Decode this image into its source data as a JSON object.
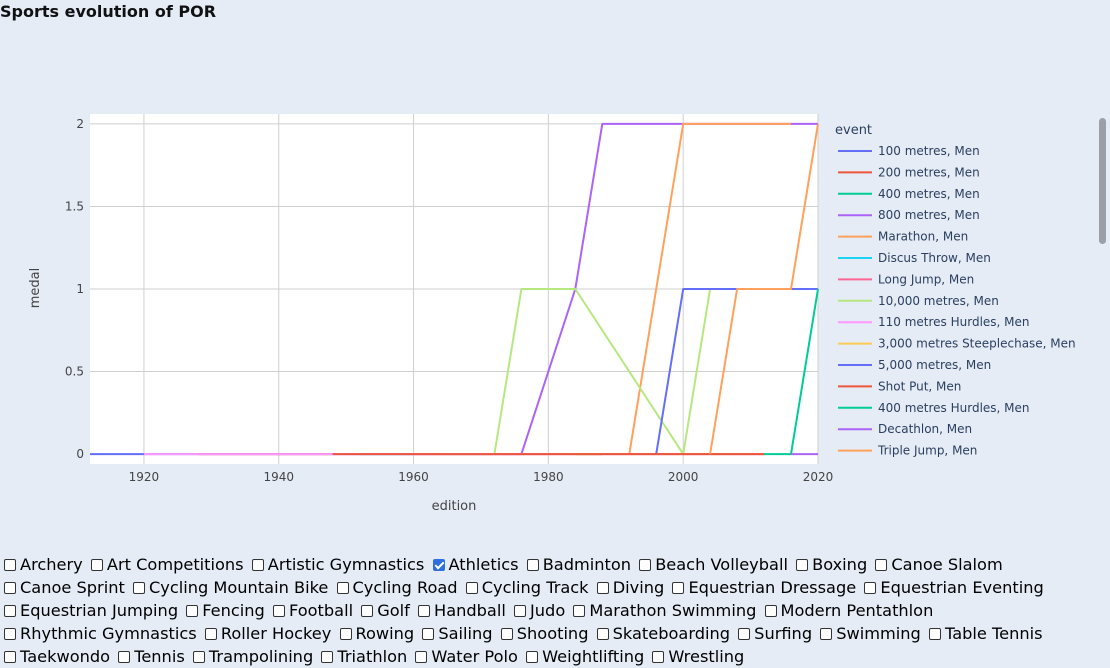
{
  "page": {
    "title": "Sports evolution of POR"
  },
  "chart_data": {
    "type": "line",
    "title": "Sports evolution of POR",
    "xlabel": "edition",
    "ylabel": "medal",
    "xlim": [
      1912,
      2020
    ],
    "ylim": [
      -0.06,
      2.06
    ],
    "x_ticks": [
      1920,
      1940,
      1960,
      1980,
      2000,
      2020
    ],
    "y_ticks": [
      0,
      0.5,
      1,
      1.5,
      2
    ],
    "y_tick_labels": [
      "0",
      "0.5",
      "1",
      "1.5",
      "2"
    ],
    "grid": true,
    "legend_title": "event",
    "legend_position": "right",
    "series": [
      {
        "name": "100 metres, Men",
        "color": "#636efa",
        "x": [
          1912,
          1976
        ],
        "y": [
          0,
          0
        ]
      },
      {
        "name": "200 metres, Men",
        "color": "#ef553b",
        "x": [
          1928,
          1948
        ],
        "y": [
          0,
          0
        ]
      },
      {
        "name": "400 metres, Men",
        "color": "#00cc96",
        "x": [
          1984,
          1988
        ],
        "y": [
          0,
          0
        ]
      },
      {
        "name": "800 metres, Men",
        "color": "#ab63fa",
        "x": [
          1976,
          1984,
          1988,
          2016,
          2020
        ],
        "y": [
          0,
          1,
          2,
          2,
          2
        ]
      },
      {
        "name": "Marathon, Men",
        "color": "#ffa15a",
        "x": [
          1992,
          1996,
          2000,
          2004,
          2008,
          2016
        ],
        "y": [
          0,
          1,
          2,
          2,
          2,
          2
        ]
      },
      {
        "name": "Discus Throw, Men",
        "color": "#19d3f3",
        "x": [
          1952,
          1960
        ],
        "y": [
          0,
          0
        ]
      },
      {
        "name": "Long Jump, Men",
        "color": "#ff6692",
        "x": [
          1960,
          1964,
          2004,
          2012
        ],
        "y": [
          0,
          0,
          0,
          0
        ]
      },
      {
        "name": "10,000 metres, Men",
        "color": "#b6e880",
        "x": [
          1964,
          1972,
          1976,
          1984,
          2000,
          2004
        ],
        "y": [
          0,
          0,
          1,
          1,
          0,
          1
        ]
      },
      {
        "name": "110 metres Hurdles, Men",
        "color": "#ff97ff",
        "x": [
          1920,
          1928,
          1976,
          1980
        ],
        "y": [
          0,
          0,
          0,
          0
        ]
      },
      {
        "name": "3,000 metres Steeplechase, Men",
        "color": "#fecb52",
        "x": [
          1984,
          1988
        ],
        "y": [
          0,
          0
        ]
      },
      {
        "name": "5,000 metres, Men",
        "color": "#636efa",
        "x": [
          1996,
          2000,
          2004,
          2020
        ],
        "y": [
          0,
          1,
          1,
          1
        ]
      },
      {
        "name": "Shot Put, Men",
        "color": "#ef553b",
        "x": [
          1948,
          1952,
          2008,
          2012
        ],
        "y": [
          0,
          0,
          0,
          0
        ]
      },
      {
        "name": "400 metres Hurdles, Men",
        "color": "#00cc96",
        "x": [
          2012,
          2016,
          2020
        ],
        "y": [
          0,
          0,
          1
        ]
      },
      {
        "name": "Decathlon, Men",
        "color": "#ab63fa",
        "x": [
          2016,
          2020
        ],
        "y": [
          0,
          0
        ]
      },
      {
        "name": "Triple Jump, Men",
        "color": "#ffa15a",
        "x": [
          2004,
          2008,
          2016,
          2020
        ],
        "y": [
          0,
          1,
          1,
          2
        ]
      }
    ]
  },
  "sports": [
    {
      "label": "Archery",
      "checked": false
    },
    {
      "label": "Art Competitions",
      "checked": false
    },
    {
      "label": "Artistic Gymnastics",
      "checked": false
    },
    {
      "label": "Athletics",
      "checked": true
    },
    {
      "label": "Badminton",
      "checked": false
    },
    {
      "label": "Beach Volleyball",
      "checked": false
    },
    {
      "label": "Boxing",
      "checked": false
    },
    {
      "label": "Canoe Slalom",
      "checked": false
    },
    {
      "label": "Canoe Sprint",
      "checked": false
    },
    {
      "label": "Cycling Mountain Bike",
      "checked": false
    },
    {
      "label": "Cycling Road",
      "checked": false
    },
    {
      "label": "Cycling Track",
      "checked": false
    },
    {
      "label": "Diving",
      "checked": false
    },
    {
      "label": "Equestrian Dressage",
      "checked": false
    },
    {
      "label": "Equestrian Eventing",
      "checked": false
    },
    {
      "label": "Equestrian Jumping",
      "checked": false
    },
    {
      "label": "Fencing",
      "checked": false
    },
    {
      "label": "Football",
      "checked": false
    },
    {
      "label": "Golf",
      "checked": false
    },
    {
      "label": "Handball",
      "checked": false
    },
    {
      "label": "Judo",
      "checked": false
    },
    {
      "label": "Marathon Swimming",
      "checked": false
    },
    {
      "label": "Modern Pentathlon",
      "checked": false
    },
    {
      "label": "Rhythmic Gymnastics",
      "checked": false
    },
    {
      "label": "Roller Hockey",
      "checked": false
    },
    {
      "label": "Rowing",
      "checked": false
    },
    {
      "label": "Sailing",
      "checked": false
    },
    {
      "label": "Shooting",
      "checked": false
    },
    {
      "label": "Skateboarding",
      "checked": false
    },
    {
      "label": "Surfing",
      "checked": false
    },
    {
      "label": "Swimming",
      "checked": false
    },
    {
      "label": "Table Tennis",
      "checked": false
    },
    {
      "label": "Taekwondo",
      "checked": false
    },
    {
      "label": "Tennis",
      "checked": false
    },
    {
      "label": "Trampolining",
      "checked": false
    },
    {
      "label": "Triathlon",
      "checked": false
    },
    {
      "label": "Water Polo",
      "checked": false
    },
    {
      "label": "Weightlifting",
      "checked": false
    },
    {
      "label": "Wrestling",
      "checked": false
    }
  ]
}
